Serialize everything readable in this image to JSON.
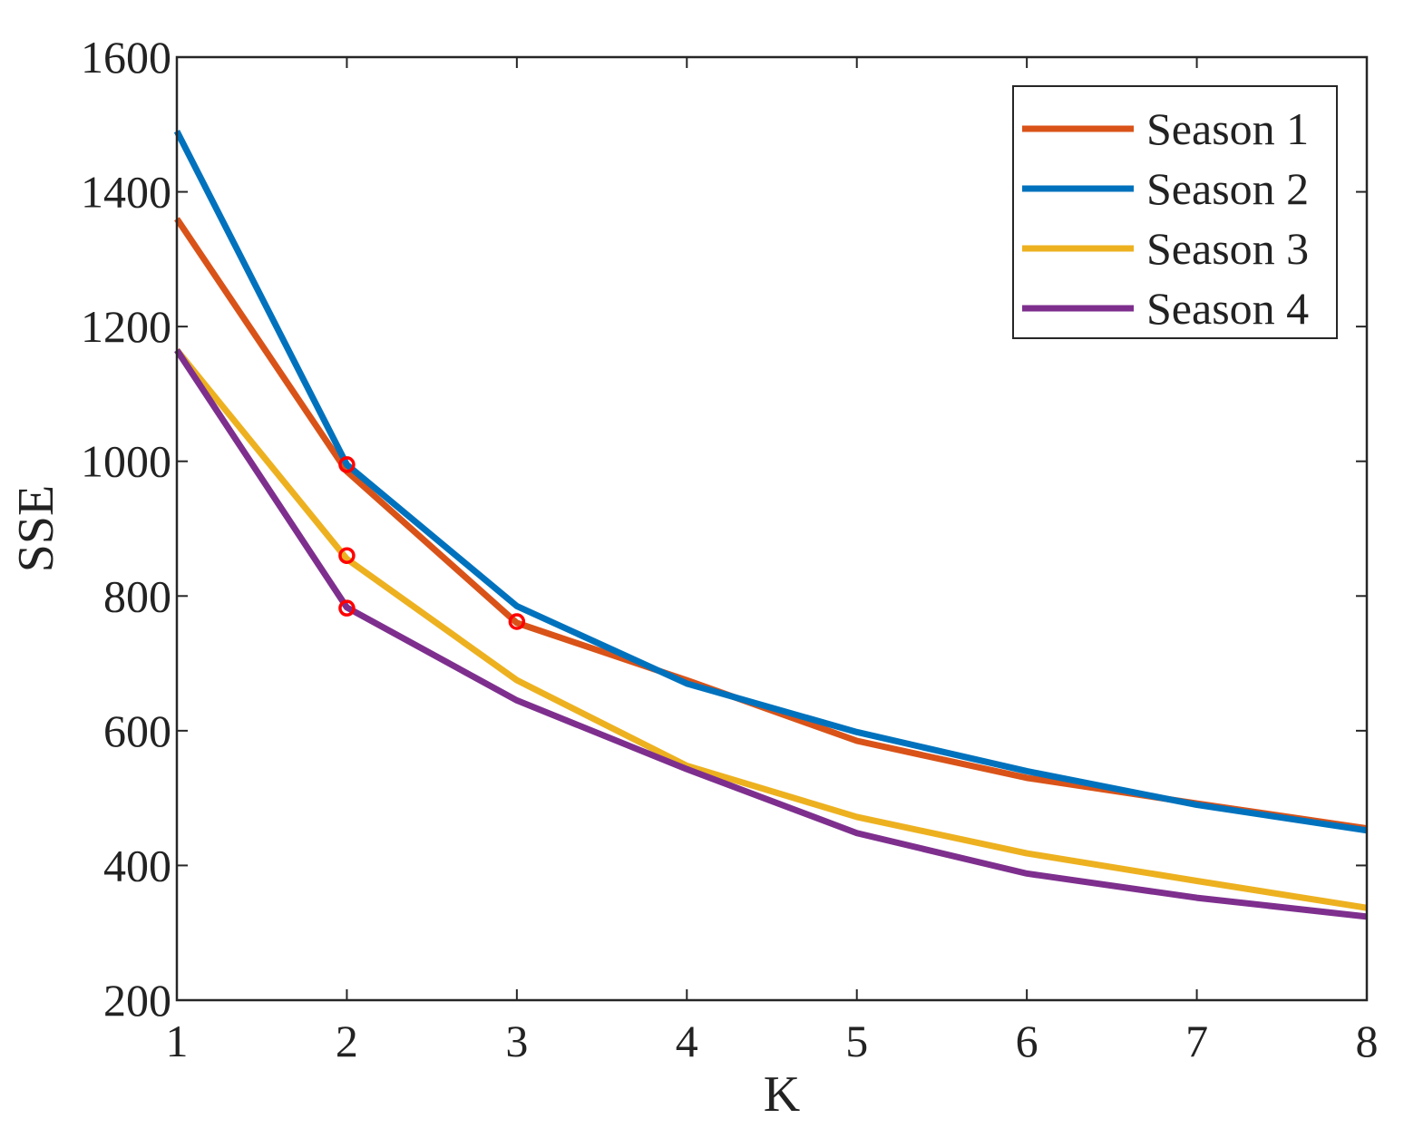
{
  "chart_data": {
    "type": "line",
    "title": "",
    "xlabel": "K",
    "ylabel": "SSE",
    "x": [
      1,
      2,
      3,
      4,
      5,
      6,
      7,
      8
    ],
    "xlim": [
      1,
      8
    ],
    "ylim": [
      200,
      1600
    ],
    "xticks": [
      "1",
      "2",
      "3",
      "4",
      "5",
      "6",
      "7",
      "8"
    ],
    "yticks": [
      "200",
      "400",
      "600",
      "800",
      "1000",
      "1200",
      "1400",
      "1600"
    ],
    "grid": false,
    "legend_position": "top-right",
    "series": [
      {
        "name": "Season 1",
        "color": "#d95319",
        "values": [
          1360,
          985,
          760,
          675,
          585,
          530,
          492,
          455
        ],
        "elbow": {
          "x": 3,
          "y": 762
        }
      },
      {
        "name": "Season 2",
        "color": "#0072bd",
        "values": [
          1490,
          995,
          785,
          670,
          598,
          540,
          490,
          452
        ],
        "elbow": {
          "x": 2,
          "y": 995
        }
      },
      {
        "name": "Season 3",
        "color": "#edb120",
        "values": [
          1165,
          855,
          675,
          548,
          472,
          418,
          377,
          337
        ],
        "elbow": {
          "x": 2,
          "y": 860
        }
      },
      {
        "name": "Season 4",
        "color": "#7e2f8e",
        "values": [
          1165,
          783,
          645,
          543,
          448,
          388,
          352,
          324
        ],
        "elbow": {
          "x": 2,
          "y": 782
        }
      }
    ],
    "elbow_marker_color": "#ff0000"
  }
}
